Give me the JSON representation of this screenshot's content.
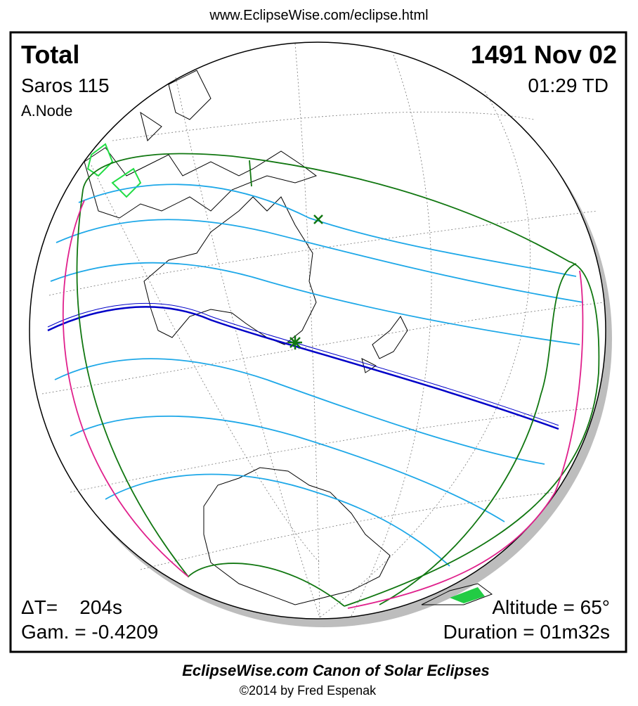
{
  "header": {
    "url": "www.EclipseWise.com/eclipse.html"
  },
  "panel": {
    "type": "Total",
    "date": "1491 Nov 02",
    "saros": "Saros 115",
    "time": "01:29 TD",
    "node": "A.Node",
    "delta_t": "ΔT=    204s",
    "gamma": "Gam. = -0.4209",
    "altitude": "Altitude = 65°",
    "duration": "Duration = 01m32s"
  },
  "footer": {
    "title": "EclipseWise.com Canon of Solar Eclipses",
    "copyright": "©2014 by Fred Espenak"
  }
}
